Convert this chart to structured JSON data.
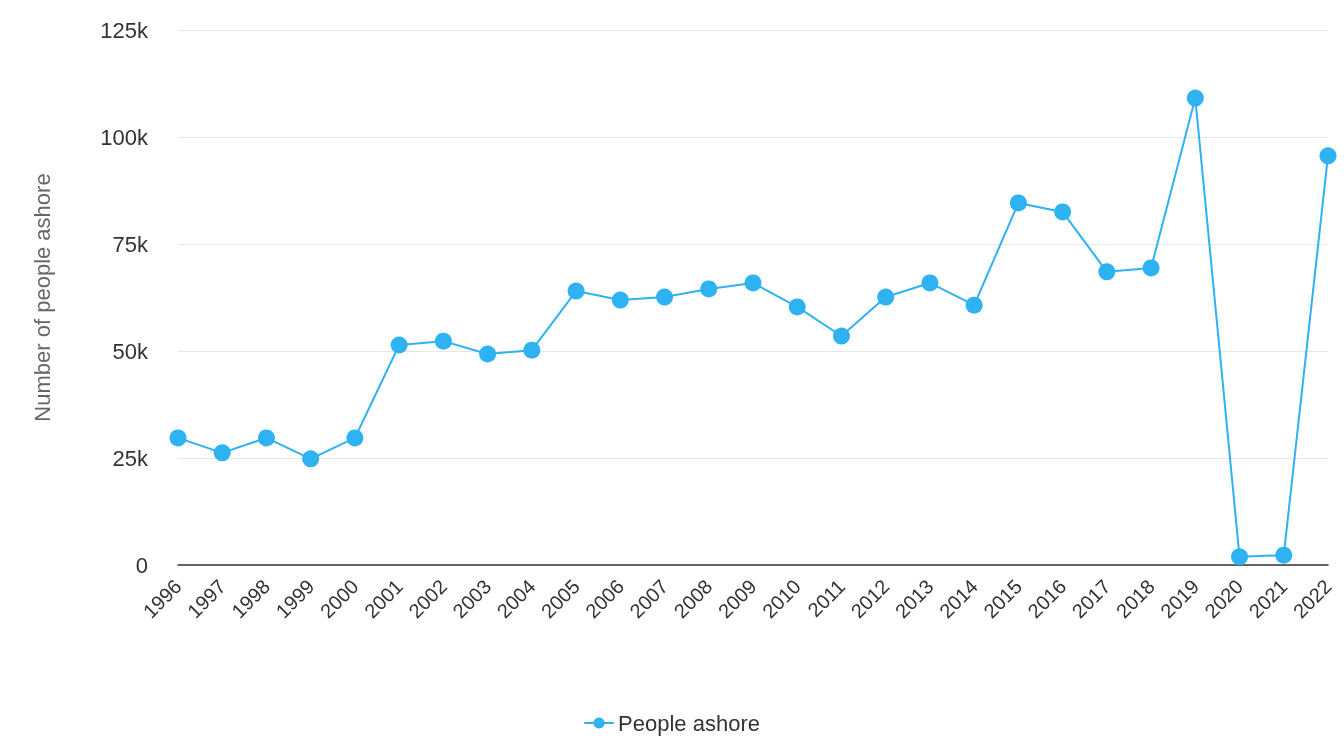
{
  "chart_data": {
    "type": "line",
    "ylabel": "Number of people ashore",
    "categories": [
      "1996",
      "1997",
      "1998",
      "1999",
      "2000",
      "2001",
      "2002",
      "2003",
      "2004",
      "2005",
      "2006",
      "2007",
      "2008",
      "2009",
      "2010",
      "2011",
      "2012",
      "2013",
      "2014",
      "2015",
      "2016",
      "2017",
      "2018",
      "2019",
      "2020",
      "2021",
      "2022"
    ],
    "series": [
      {
        "name": "People ashore",
        "color": "#2eb2f2",
        "values": [
          29700,
          26200,
          29700,
          24800,
          29700,
          51400,
          52300,
          49300,
          50200,
          64000,
          61900,
          62600,
          64500,
          65900,
          60300,
          53500,
          62600,
          65900,
          60700,
          84600,
          82500,
          68500,
          69400,
          109100,
          1900,
          2300,
          95600
        ]
      }
    ],
    "ylim": [
      0,
      125000
    ],
    "yticks": [
      0,
      {
        "value": 25000,
        "label": "25k"
      },
      {
        "value": 50000,
        "label": "50k"
      },
      {
        "value": 75000,
        "label": "75k"
      },
      {
        "value": 100000,
        "label": "100k"
      },
      {
        "value": 125000,
        "label": "125k"
      }
    ],
    "grid": "y",
    "legend": "bottom",
    "marker": "circle",
    "line_style": "solid"
  }
}
